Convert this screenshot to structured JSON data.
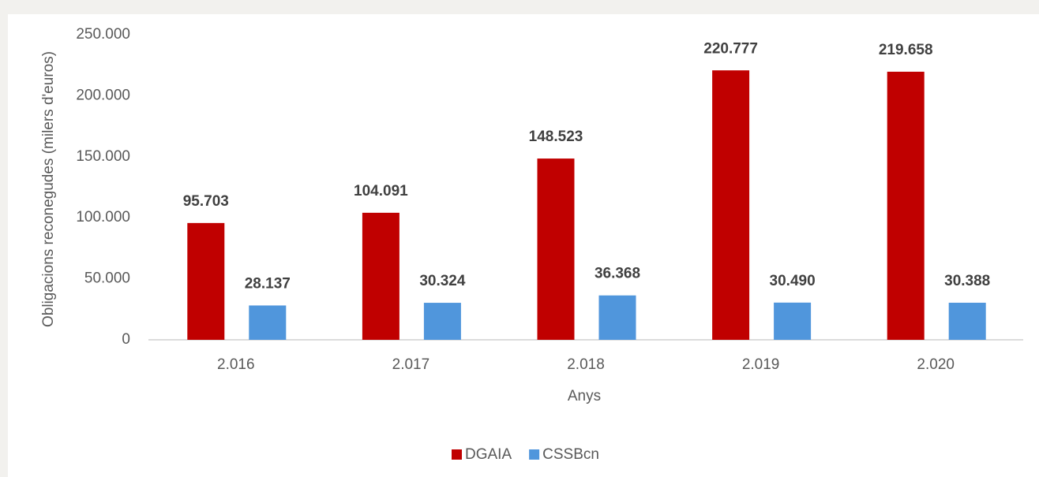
{
  "chart_data": {
    "type": "bar",
    "categories": [
      "2.016",
      "2.017",
      "2.018",
      "2.019",
      "2.020"
    ],
    "series": [
      {
        "name": "DGAIA",
        "color": "#c00000",
        "values": [
          95703,
          104091,
          148523,
          220777,
          219658
        ],
        "value_labels": [
          "95.703",
          "104.091",
          "148.523",
          "220.777",
          "219.658"
        ]
      },
      {
        "name": "CSSBcn",
        "color": "#5096dc",
        "values": [
          28137,
          30324,
          36368,
          30490,
          30388
        ],
        "value_labels": [
          "28.137",
          "30.324",
          "36.368",
          "30.490",
          "30.388"
        ]
      }
    ],
    "ylabel": "Obligacions reconegudes (milers d'euros)",
    "xlabel": "Anys",
    "ylim": [
      0,
      250000
    ],
    "yticks": [
      0,
      {
        "value": 50000,
        "label": "50.000"
      },
      {
        "value": 100000,
        "label": "100.000"
      },
      {
        "value": 150000,
        "label": "150.000"
      },
      {
        "value": 200000,
        "label": "200.000"
      },
      {
        "value": 250000,
        "label": "250.000"
      }
    ],
    "grid": false,
    "legend": "bottom"
  }
}
